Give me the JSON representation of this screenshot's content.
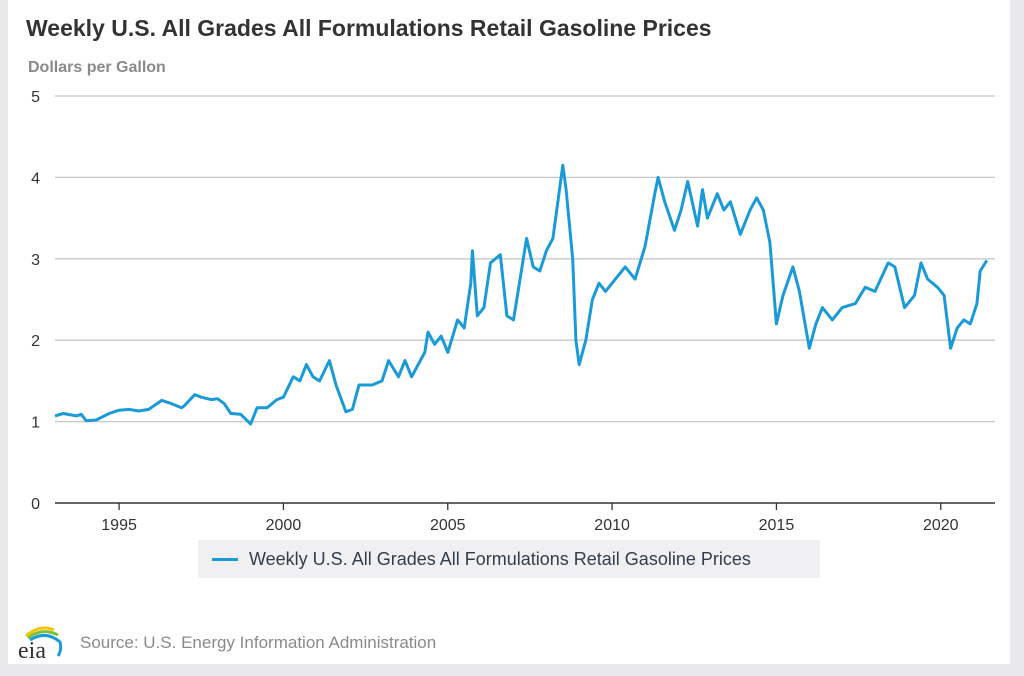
{
  "chart_data": {
    "type": "line",
    "title": "Weekly U.S. All Grades All Formulations Retail Gasoline Prices",
    "ylabel": "Dollars per Gallon",
    "xlabel": "",
    "ylim": [
      0,
      5
    ],
    "xlim": [
      1993.05,
      2021.65
    ],
    "yticks": [
      "0",
      "1",
      "2",
      "3",
      "4",
      "5"
    ],
    "xticks": [
      "1995",
      "2000",
      "2005",
      "2010",
      "2015",
      "2020"
    ],
    "grid": true,
    "legend_position": "bottom-center",
    "series": [
      {
        "name": "Weekly U.S. All Grades All Formulations Retail Gasoline Prices",
        "color": "#1a9ad6",
        "points": [
          [
            1993.05,
            1.07
          ],
          [
            1993.3,
            1.1
          ],
          [
            1993.7,
            1.07
          ],
          [
            1993.85,
            1.09
          ],
          [
            1994.0,
            1.01
          ],
          [
            1994.3,
            1.02
          ],
          [
            1994.7,
            1.1
          ],
          [
            1995.0,
            1.14
          ],
          [
            1995.3,
            1.15
          ],
          [
            1995.6,
            1.13
          ],
          [
            1995.9,
            1.15
          ],
          [
            1996.3,
            1.26
          ],
          [
            1996.6,
            1.22
          ],
          [
            1996.9,
            1.17
          ],
          [
            1997.0,
            1.2
          ],
          [
            1997.3,
            1.33
          ],
          [
            1997.5,
            1.3
          ],
          [
            1997.8,
            1.27
          ],
          [
            1998.0,
            1.28
          ],
          [
            1998.2,
            1.22
          ],
          [
            1998.4,
            1.1
          ],
          [
            1998.7,
            1.09
          ],
          [
            1999.0,
            0.97
          ],
          [
            1999.2,
            1.17
          ],
          [
            1999.5,
            1.17
          ],
          [
            1999.8,
            1.27
          ],
          [
            2000.0,
            1.3
          ],
          [
            2000.3,
            1.55
          ],
          [
            2000.5,
            1.5
          ],
          [
            2000.7,
            1.7
          ],
          [
            2000.9,
            1.55
          ],
          [
            2001.1,
            1.5
          ],
          [
            2001.4,
            1.75
          ],
          [
            2001.6,
            1.45
          ],
          [
            2001.9,
            1.12
          ],
          [
            2002.1,
            1.15
          ],
          [
            2002.3,
            1.45
          ],
          [
            2002.7,
            1.45
          ],
          [
            2003.0,
            1.5
          ],
          [
            2003.2,
            1.75
          ],
          [
            2003.5,
            1.55
          ],
          [
            2003.7,
            1.75
          ],
          [
            2003.9,
            1.55
          ],
          [
            2004.3,
            1.85
          ],
          [
            2004.4,
            2.1
          ],
          [
            2004.6,
            1.95
          ],
          [
            2004.8,
            2.05
          ],
          [
            2005.0,
            1.85
          ],
          [
            2005.3,
            2.25
          ],
          [
            2005.5,
            2.15
          ],
          [
            2005.7,
            2.7
          ],
          [
            2005.75,
            3.1
          ],
          [
            2005.9,
            2.3
          ],
          [
            2006.1,
            2.4
          ],
          [
            2006.3,
            2.95
          ],
          [
            2006.6,
            3.05
          ],
          [
            2006.8,
            2.3
          ],
          [
            2007.0,
            2.25
          ],
          [
            2007.4,
            3.25
          ],
          [
            2007.6,
            2.9
          ],
          [
            2007.8,
            2.85
          ],
          [
            2008.0,
            3.1
          ],
          [
            2008.2,
            3.25
          ],
          [
            2008.5,
            4.15
          ],
          [
            2008.6,
            3.85
          ],
          [
            2008.8,
            3.0
          ],
          [
            2008.9,
            2.0
          ],
          [
            2009.0,
            1.7
          ],
          [
            2009.2,
            2.0
          ],
          [
            2009.4,
            2.5
          ],
          [
            2009.6,
            2.7
          ],
          [
            2009.8,
            2.6
          ],
          [
            2010.1,
            2.75
          ],
          [
            2010.4,
            2.9
          ],
          [
            2010.7,
            2.75
          ],
          [
            2011.0,
            3.15
          ],
          [
            2011.3,
            3.8
          ],
          [
            2011.4,
            4.0
          ],
          [
            2011.6,
            3.7
          ],
          [
            2011.9,
            3.35
          ],
          [
            2012.1,
            3.6
          ],
          [
            2012.3,
            3.95
          ],
          [
            2012.6,
            3.4
          ],
          [
            2012.75,
            3.85
          ],
          [
            2012.9,
            3.5
          ],
          [
            2013.1,
            3.7
          ],
          [
            2013.2,
            3.8
          ],
          [
            2013.4,
            3.6
          ],
          [
            2013.6,
            3.7
          ],
          [
            2013.9,
            3.3
          ],
          [
            2014.2,
            3.6
          ],
          [
            2014.4,
            3.75
          ],
          [
            2014.6,
            3.6
          ],
          [
            2014.8,
            3.2
          ],
          [
            2015.0,
            2.2
          ],
          [
            2015.2,
            2.55
          ],
          [
            2015.5,
            2.9
          ],
          [
            2015.7,
            2.6
          ],
          [
            2016.0,
            1.9
          ],
          [
            2016.2,
            2.2
          ],
          [
            2016.4,
            2.4
          ],
          [
            2016.7,
            2.25
          ],
          [
            2017.0,
            2.4
          ],
          [
            2017.4,
            2.45
          ],
          [
            2017.7,
            2.65
          ],
          [
            2018.0,
            2.6
          ],
          [
            2018.4,
            2.95
          ],
          [
            2018.6,
            2.9
          ],
          [
            2018.9,
            2.4
          ],
          [
            2019.2,
            2.55
          ],
          [
            2019.4,
            2.95
          ],
          [
            2019.6,
            2.75
          ],
          [
            2019.9,
            2.65
          ],
          [
            2020.1,
            2.55
          ],
          [
            2020.3,
            1.9
          ],
          [
            2020.5,
            2.15
          ],
          [
            2020.7,
            2.25
          ],
          [
            2020.9,
            2.2
          ],
          [
            2021.1,
            2.45
          ],
          [
            2021.2,
            2.85
          ],
          [
            2021.4,
            2.98
          ]
        ]
      }
    ],
    "source": "Source: U.S. Energy Information Administration",
    "logo_text": "eia"
  }
}
